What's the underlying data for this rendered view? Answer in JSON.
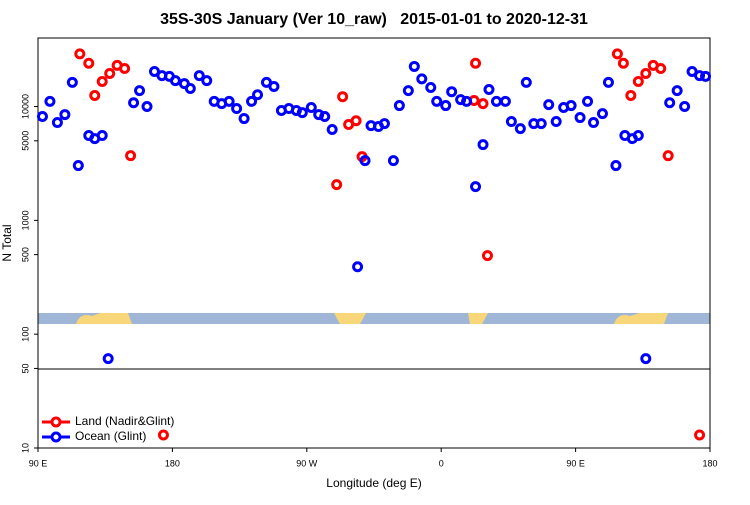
{
  "chart_data": {
    "type": "scatter",
    "title": "35S-30S January (Ver 10_raw)   2015-01-01 to 2020-12-31",
    "xlabel": "Longitude (deg E)",
    "ylabel": "N Total",
    "xlim": [
      90,
      540
    ],
    "xticks": [
      {
        "value": 90,
        "label": "90 E"
      },
      {
        "value": 180,
        "label": "180"
      },
      {
        "value": 270,
        "label": "90 W"
      },
      {
        "value": 360,
        "label": "0"
      },
      {
        "value": 450,
        "label": "90 E"
      },
      {
        "value": 540,
        "label": "180"
      }
    ],
    "ylim": [
      10,
      40000
    ],
    "yscale": "log",
    "yticks": [
      10,
      50,
      100,
      500,
      1000,
      5000,
      10000
    ],
    "legend": "bottom-left",
    "series": [
      {
        "name": "Land (Nadir&Glint)",
        "color": "#ff0000",
        "x": [
          118,
          124,
          128,
          133,
          138,
          143,
          148,
          152,
          174,
          290,
          294,
          298,
          303,
          307,
          382,
          383,
          388,
          391,
          478,
          482,
          487,
          492,
          497,
          502,
          507,
          512,
          533
        ],
        "values": [
          29000,
          24000,
          12500,
          16600,
          19500,
          23000,
          21600,
          3700,
          13,
          2060,
          12200,
          6950,
          7500,
          3630,
          11300,
          24000,
          10600,
          490,
          29000,
          24000,
          12500,
          16600,
          19500,
          23000,
          21600,
          3700,
          13
        ]
      },
      {
        "name": "Ocean (Glint)",
        "color": "#0000ff",
        "x": [
          93,
          98,
          103,
          108,
          113,
          117,
          124,
          128,
          133,
          137,
          154,
          158,
          163,
          168,
          173,
          178,
          182,
          188,
          192,
          198,
          203,
          208,
          213,
          218,
          223,
          228,
          233,
          237,
          243,
          248,
          253,
          258,
          263,
          267,
          273,
          278,
          282,
          287,
          304,
          309,
          313,
          318,
          322,
          328,
          332,
          338,
          342,
          347,
          353,
          357,
          363,
          367,
          373,
          377,
          383,
          388,
          392,
          397,
          403,
          407,
          413,
          417,
          422,
          427,
          432,
          437,
          442,
          447,
          453,
          458,
          462,
          468,
          472,
          477,
          483,
          488,
          492,
          497,
          513,
          518,
          523,
          528,
          533,
          537
        ],
        "values": [
          8170,
          11100,
          7230,
          8500,
          16300,
          3030,
          5560,
          5230,
          5560,
          61,
          10800,
          13800,
          10000,
          20300,
          18700,
          18400,
          16900,
          15900,
          14400,
          18700,
          16900,
          11100,
          10600,
          11100,
          9600,
          7840,
          11100,
          12700,
          16300,
          15000,
          9220,
          9600,
          9220,
          8850,
          9800,
          8500,
          8170,
          6280,
          391,
          3350,
          6800,
          6670,
          7080,
          3350,
          10200,
          13800,
          22500,
          17500,
          14700,
          11100,
          10200,
          13500,
          11500,
          11100,
          1980,
          4630,
          14100,
          11100,
          11100,
          7380,
          6400,
          16300,
          7080,
          7080,
          10400,
          7380,
          9800,
          10200,
          8000,
          11100,
          7230,
          8670,
          16300,
          3030,
          5560,
          5230,
          5560,
          61,
          10800,
          13800,
          10000,
          20300,
          18700,
          18400
        ]
      }
    ]
  }
}
